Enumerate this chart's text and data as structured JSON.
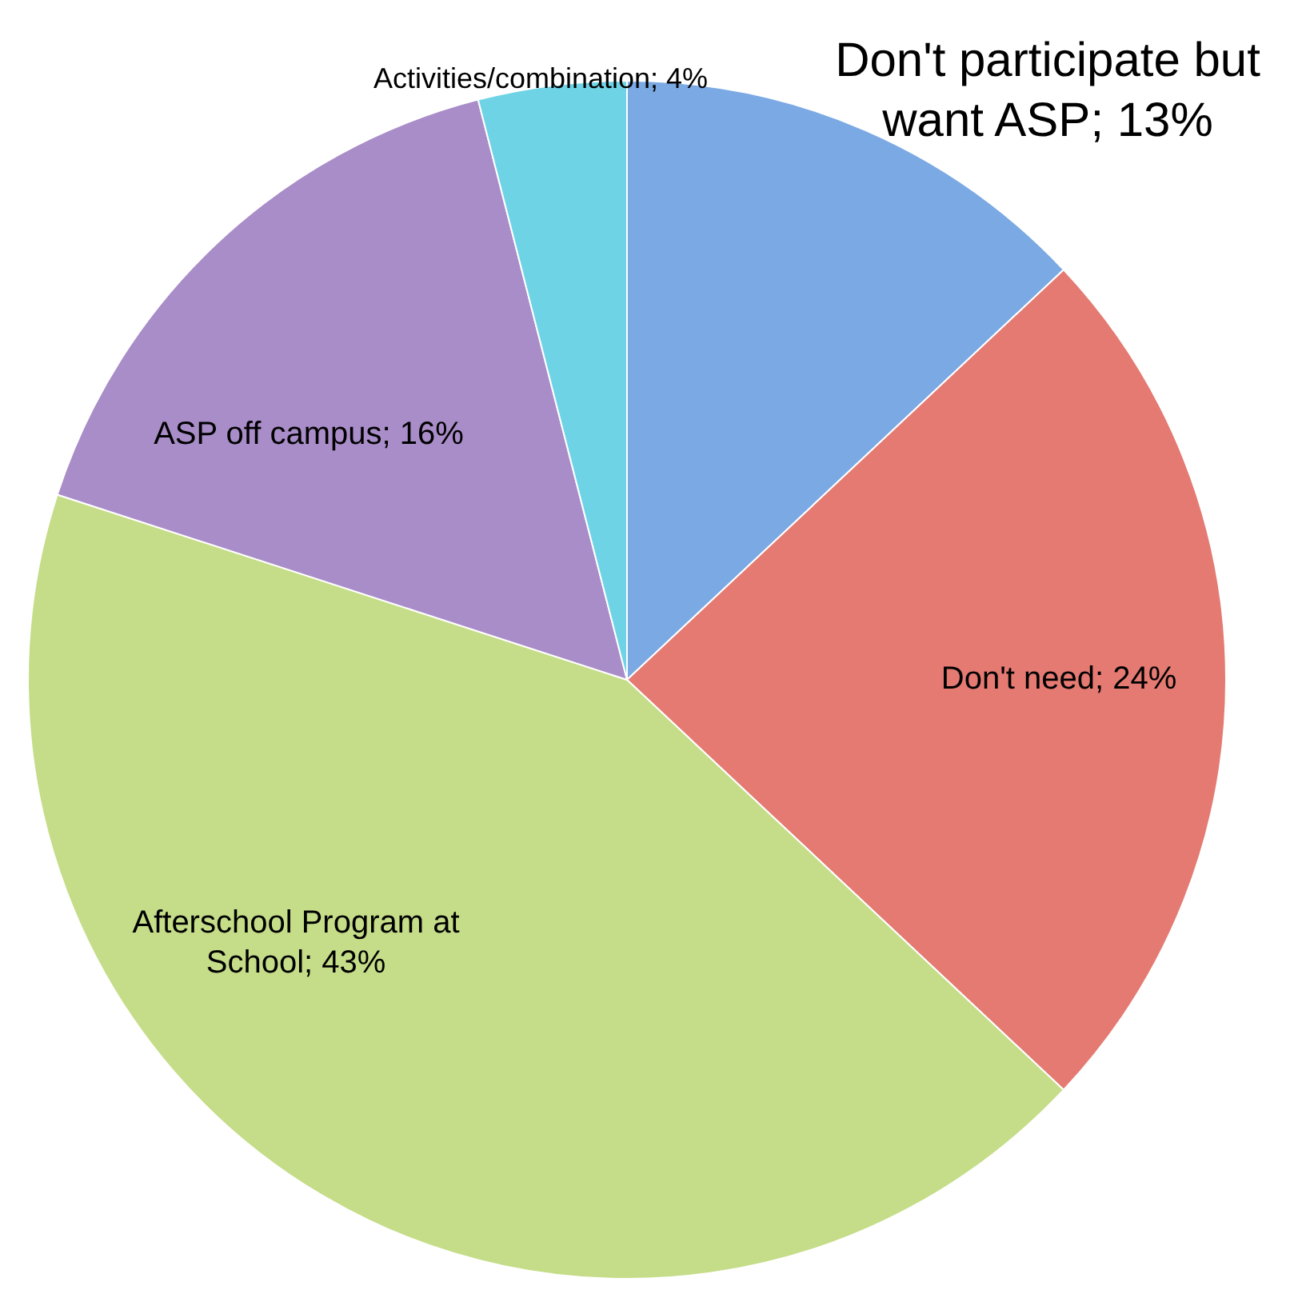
{
  "chart_data": {
    "type": "pie",
    "categories": [
      "Don't participate but want ASP; 13%",
      "Don't need; 24%",
      "Afterschool Program at School; 43%",
      "ASP off campus; 16%",
      "Activities/combination; 4%"
    ],
    "values": [
      13,
      24,
      43,
      16,
      4
    ],
    "colors": [
      "#7ba9e3",
      "#e47a72",
      "#c5dd88",
      "#a98dc8",
      "#6fd3e6"
    ],
    "legend": false
  }
}
